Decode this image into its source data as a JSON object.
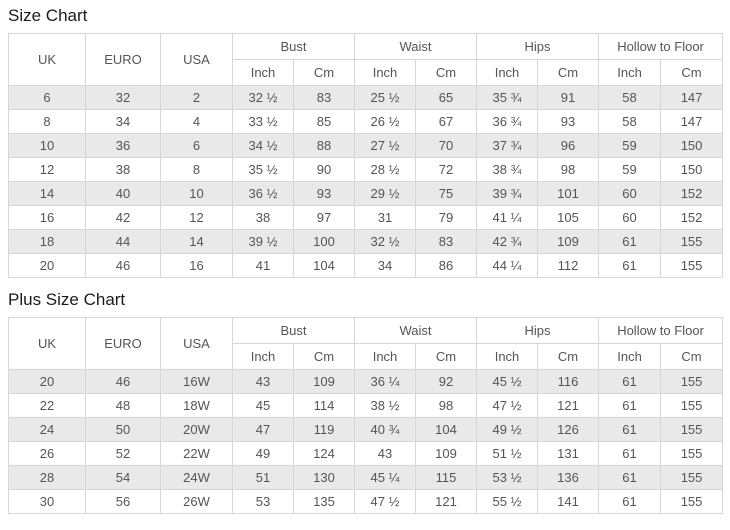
{
  "colors": {
    "row_alt_bg": "#e9e9e9",
    "row_bg": "#ffffff",
    "border": "#d6d6d6",
    "outer_border": "#c9c9c9",
    "text": "#555555",
    "title_text": "#1a1a1a"
  },
  "charts": [
    {
      "title": "Size Chart",
      "header": {
        "plain_columns": [
          "UK",
          "EURO",
          "USA"
        ],
        "groups": [
          "Bust",
          "Waist",
          "Hips",
          "Hollow to Floor"
        ],
        "subcolumns": [
          "Inch",
          "Cm"
        ]
      },
      "rows": [
        [
          "6",
          "32",
          "2",
          "32 ½",
          "83",
          "25 ½",
          "65",
          "35 ¾",
          "91",
          "58",
          "147"
        ],
        [
          "8",
          "34",
          "4",
          "33 ½",
          "85",
          "26 ½",
          "67",
          "36 ¾",
          "93",
          "58",
          "147"
        ],
        [
          "10",
          "36",
          "6",
          "34 ½",
          "88",
          "27 ½",
          "70",
          "37 ¾",
          "96",
          "59",
          "150"
        ],
        [
          "12",
          "38",
          "8",
          "35 ½",
          "90",
          "28 ½",
          "72",
          "38 ¾",
          "98",
          "59",
          "150"
        ],
        [
          "14",
          "40",
          "10",
          "36 ½",
          "93",
          "29 ½",
          "75",
          "39 ¾",
          "101",
          "60",
          "152"
        ],
        [
          "16",
          "42",
          "12",
          "38",
          "97",
          "31",
          "79",
          "41 ¼",
          "105",
          "60",
          "152"
        ],
        [
          "18",
          "44",
          "14",
          "39 ½",
          "100",
          "32 ½",
          "83",
          "42 ¾",
          "109",
          "61",
          "155"
        ],
        [
          "20",
          "46",
          "16",
          "41",
          "104",
          "34",
          "86",
          "44 ¼",
          "112",
          "61",
          "155"
        ]
      ]
    },
    {
      "title": "Plus Size Chart",
      "header": {
        "plain_columns": [
          "UK",
          "EURO",
          "USA"
        ],
        "groups": [
          "Bust",
          "Waist",
          "Hips",
          "Hollow to Floor"
        ],
        "subcolumns": [
          "Inch",
          "Cm"
        ]
      },
      "rows": [
        [
          "20",
          "46",
          "16W",
          "43",
          "109",
          "36 ¼",
          "92",
          "45 ½",
          "116",
          "61",
          "155"
        ],
        [
          "22",
          "48",
          "18W",
          "45",
          "114",
          "38 ½",
          "98",
          "47 ½",
          "121",
          "61",
          "155"
        ],
        [
          "24",
          "50",
          "20W",
          "47",
          "119",
          "40 ¾",
          "104",
          "49 ½",
          "126",
          "61",
          "155"
        ],
        [
          "26",
          "52",
          "22W",
          "49",
          "124",
          "43",
          "109",
          "51 ½",
          "131",
          "61",
          "155"
        ],
        [
          "28",
          "54",
          "24W",
          "51",
          "130",
          "45 ¼",
          "115",
          "53 ½",
          "136",
          "61",
          "155"
        ],
        [
          "30",
          "56",
          "26W",
          "53",
          "135",
          "47 ½",
          "121",
          "55 ½",
          "141",
          "61",
          "155"
        ]
      ]
    }
  ]
}
